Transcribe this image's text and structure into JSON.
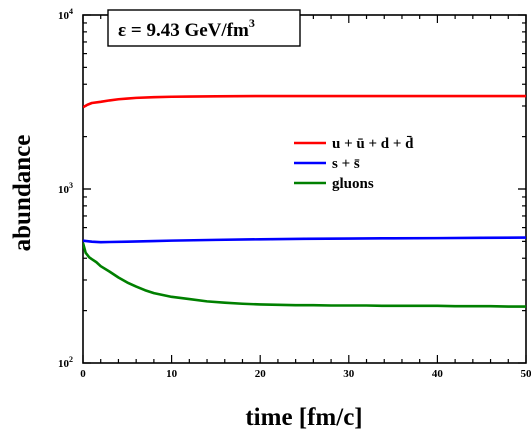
{
  "chart_data": {
    "type": "line",
    "title": "ε = 9.43 GeV/fm",
    "title_superscript": "3",
    "xlabel": "time [fm/c]",
    "ylabel": "abundance",
    "xlim": [
      0,
      50
    ],
    "ylim": [
      100,
      10000
    ],
    "yscale": "log",
    "x_ticks": [
      "0",
      "10",
      "20",
      "30",
      "40",
      "50"
    ],
    "y_ticks": [
      {
        "base": "10",
        "exp": "2"
      },
      {
        "base": "10",
        "exp": "3"
      },
      {
        "base": "10",
        "exp": "4"
      }
    ],
    "legend_position": "upper-right",
    "series": [
      {
        "name": "u + ū + d + d̄",
        "color": "#ff0000",
        "x": [
          0,
          0.5,
          1,
          2,
          3,
          4,
          5,
          6,
          8,
          10,
          12,
          15,
          20,
          25,
          30,
          35,
          40,
          45,
          50
        ],
        "y": [
          2950,
          3050,
          3120,
          3170,
          3230,
          3280,
          3310,
          3340,
          3370,
          3390,
          3400,
          3410,
          3420,
          3420,
          3420,
          3420,
          3420,
          3420,
          3420
        ]
      },
      {
        "name": "s + s̄",
        "color": "#0000ff",
        "x": [
          0,
          1,
          2,
          3,
          5,
          8,
          10,
          15,
          20,
          25,
          30,
          35,
          40,
          45,
          50
        ],
        "y": [
          505,
          498,
          495,
          496,
          498,
          502,
          505,
          510,
          514,
          517,
          519,
          521,
          522,
          524,
          526
        ]
      },
      {
        "name": "gluons",
        "color": "#008000",
        "x": [
          0,
          0.3,
          0.7,
          1,
          1.5,
          2,
          3,
          4,
          5,
          6,
          7,
          8,
          10,
          12,
          14,
          16,
          18,
          20,
          22,
          24,
          26,
          28,
          30,
          32,
          34,
          36,
          38,
          40,
          42,
          44,
          46,
          48,
          50
        ],
        "y": [
          490,
          430,
          405,
          395,
          380,
          360,
          335,
          310,
          290,
          275,
          262,
          252,
          240,
          233,
          226,
          222,
          219,
          217,
          216,
          215,
          215,
          214,
          214,
          214,
          213,
          213,
          213,
          213,
          212,
          212,
          212,
          211,
          211
        ]
      }
    ]
  }
}
